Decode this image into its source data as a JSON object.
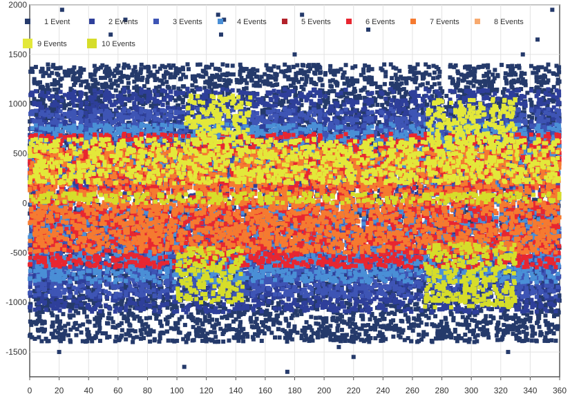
{
  "chart_data": {
    "type": "scatter",
    "title": "",
    "xlabel": "",
    "ylabel": "",
    "xlim": [
      0,
      360
    ],
    "ylim": [
      -1750,
      2000
    ],
    "x_ticks": [
      0,
      20,
      40,
      60,
      80,
      100,
      120,
      140,
      160,
      180,
      200,
      220,
      240,
      260,
      280,
      300,
      320,
      340,
      360
    ],
    "y_ticks": [
      -1500,
      -1000,
      -500,
      0,
      500,
      1000,
      1500,
      2000
    ],
    "grid": true,
    "legend_placement": "top-left",
    "series": [
      {
        "name": "1 Event",
        "color": "#253a6b"
      },
      {
        "name": "2 Events",
        "color": "#2e3f9a"
      },
      {
        "name": "3 Events",
        "color": "#3e55b5"
      },
      {
        "name": "4 Events",
        "color": "#4a8fd6"
      },
      {
        "name": "5 Events",
        "color": "#b3212a"
      },
      {
        "name": "6 Events",
        "color": "#e82630"
      },
      {
        "name": "7 Events",
        "color": "#f57a30"
      },
      {
        "name": "8 Events",
        "color": "#f7a96e"
      },
      {
        "name": "9 Events",
        "color": "#e3e83a"
      },
      {
        "name": "10 Events",
        "color": "#d6dd2a"
      }
    ],
    "bands": [
      {
        "series": "1 Event",
        "x_range": [
          0,
          360
        ],
        "y_range": [
          -1400,
          1400
        ]
      },
      {
        "series": "2 Events",
        "x_range": [
          0,
          360
        ],
        "y_range": [
          -1100,
          1150
        ]
      },
      {
        "series": "3 Events",
        "x_range": [
          0,
          360
        ],
        "y_range": [
          -950,
          950
        ]
      },
      {
        "series": "4 Events",
        "x_range": [
          0,
          360
        ],
        "y_range": [
          -800,
          800
        ]
      },
      {
        "series": "6 Events",
        "x_range": [
          0,
          360
        ],
        "y_range": [
          -650,
          700
        ]
      },
      {
        "series": "7 Events",
        "x_range": [
          0,
          360
        ],
        "y_range": [
          -500,
          550
        ]
      },
      {
        "series": "9 Events",
        "x_range": [
          0,
          360
        ],
        "y_range": [
          200,
          650
        ]
      },
      {
        "series": "10 Events",
        "x_range": [
          0,
          360
        ],
        "y_range": [
          0,
          100
        ]
      },
      {
        "series": "9 Events",
        "x_range": [
          105,
          150
        ],
        "y_range": [
          600,
          1100
        ]
      },
      {
        "series": "10 Events",
        "x_range": [
          100,
          145
        ],
        "y_range": [
          -1000,
          -450
        ]
      },
      {
        "series": "9 Events",
        "x_range": [
          270,
          330
        ],
        "y_range": [
          600,
          1050
        ]
      },
      {
        "series": "10 Events",
        "x_range": [
          268,
          330
        ],
        "y_range": [
          -1050,
          -400
        ]
      }
    ],
    "outliers": [
      [
        20,
        -1500
      ],
      [
        22,
        1950
      ],
      [
        40,
        -1350
      ],
      [
        45,
        -1350
      ],
      [
        55,
        1700
      ],
      [
        65,
        1850
      ],
      [
        70,
        -1400
      ],
      [
        105,
        -1650
      ],
      [
        128,
        1900
      ],
      [
        130,
        1700
      ],
      [
        132,
        1850
      ],
      [
        175,
        -1700
      ],
      [
        180,
        1500
      ],
      [
        185,
        1900
      ],
      [
        210,
        -1450
      ],
      [
        220,
        -1550
      ],
      [
        230,
        1750
      ],
      [
        325,
        -1500
      ],
      [
        335,
        1500
      ],
      [
        345,
        1650
      ],
      [
        355,
        1950
      ],
      [
        5,
        -1200
      ]
    ]
  }
}
